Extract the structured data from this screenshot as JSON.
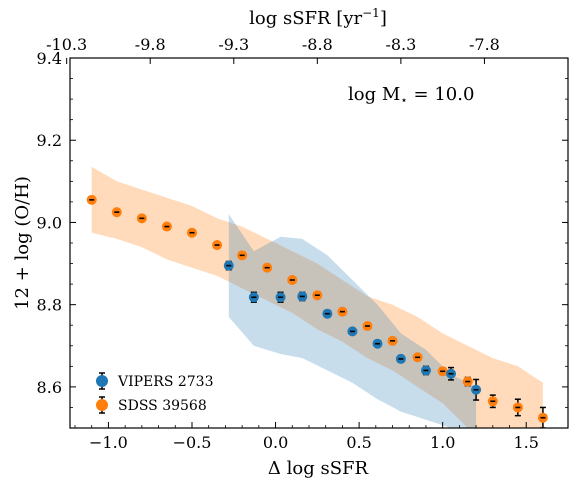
{
  "chart_data": {
    "type": "scatter",
    "xlabel": "Δ log sSFR",
    "ylabel": "12 + log (O/H)",
    "top_xlabel": "log sSFR [yr",
    "top_xlabel_exp": "−1",
    "top_xlabel_close": "]",
    "annotation": "log M",
    "annotation_sub": "⋆",
    "annotation_value": " = 10.0",
    "xlim": [
      -1.23,
      1.75
    ],
    "ylim": [
      8.5,
      9.4
    ],
    "xticks": [
      -1.0,
      -0.5,
      0.0,
      0.5,
      1.0,
      1.5
    ],
    "xtick_labels": [
      "−1.0",
      "−0.5",
      "0.0",
      "0.5",
      "1.0",
      "1.5"
    ],
    "yticks": [
      8.6,
      8.8,
      9.0,
      9.2,
      9.4
    ],
    "ytick_labels": [
      "8.6",
      "8.8",
      "9.0",
      "9.2",
      "9.4"
    ],
    "top_ticks": [
      -1.25,
      -0.75,
      -0.25,
      0.25,
      0.75,
      1.25
    ],
    "top_tick_labels": [
      "-10.3",
      "-9.8",
      "-9.3",
      "-8.8",
      "-8.3",
      "-7.8"
    ],
    "legend_position": "lower-left",
    "series": [
      {
        "name": "VIPERS 2733",
        "color": "#1f77b4",
        "x": [
          -0.28,
          -0.13,
          0.03,
          0.16,
          0.31,
          0.46,
          0.61,
          0.75,
          0.9,
          1.05,
          1.2
        ],
        "y": [
          8.895,
          8.818,
          8.818,
          8.82,
          8.778,
          8.735,
          8.705,
          8.668,
          8.64,
          8.632,
          8.593
        ],
        "err": [
          0.01,
          0.012,
          0.012,
          0.01,
          0.008,
          0.006,
          0.006,
          0.008,
          0.01,
          0.015,
          0.025
        ],
        "band_upper": [
          9.02,
          8.93,
          8.965,
          8.96,
          8.92,
          8.86,
          8.8,
          8.73,
          8.69,
          8.63,
          8.6
        ],
        "band_lower": [
          8.77,
          8.7,
          8.68,
          8.67,
          8.64,
          8.61,
          8.57,
          8.54,
          8.52,
          8.5,
          8.5
        ]
      },
      {
        "name": "SDSS 39568",
        "color": "#ff7f0e",
        "x": [
          -1.1,
          -0.95,
          -0.8,
          -0.65,
          -0.5,
          -0.35,
          -0.2,
          -0.05,
          0.1,
          0.25,
          0.4,
          0.55,
          0.7,
          0.85,
          1.0,
          1.15,
          1.3,
          1.45,
          1.6
        ],
        "y": [
          9.055,
          9.025,
          9.01,
          8.99,
          8.975,
          8.945,
          8.92,
          8.89,
          8.86,
          8.823,
          8.783,
          8.748,
          8.712,
          8.672,
          8.638,
          8.613,
          8.565,
          8.55,
          8.525
        ],
        "err": [
          0.005,
          0.005,
          0.005,
          0.005,
          0.005,
          0.005,
          0.005,
          0.005,
          0.005,
          0.005,
          0.005,
          0.005,
          0.006,
          0.006,
          0.008,
          0.01,
          0.015,
          0.02,
          0.025
        ],
        "band_upper": [
          9.135,
          9.1,
          9.08,
          9.06,
          9.04,
          9.01,
          8.99,
          8.96,
          8.93,
          8.9,
          8.86,
          8.82,
          8.8,
          8.77,
          8.73,
          8.7,
          8.67,
          8.65,
          8.61
        ],
        "band_lower": [
          8.975,
          8.96,
          8.94,
          8.91,
          8.89,
          8.87,
          8.84,
          8.81,
          8.78,
          8.74,
          8.71,
          8.67,
          8.64,
          8.6,
          8.56,
          8.5,
          8.5,
          8.5,
          8.5
        ]
      }
    ]
  }
}
